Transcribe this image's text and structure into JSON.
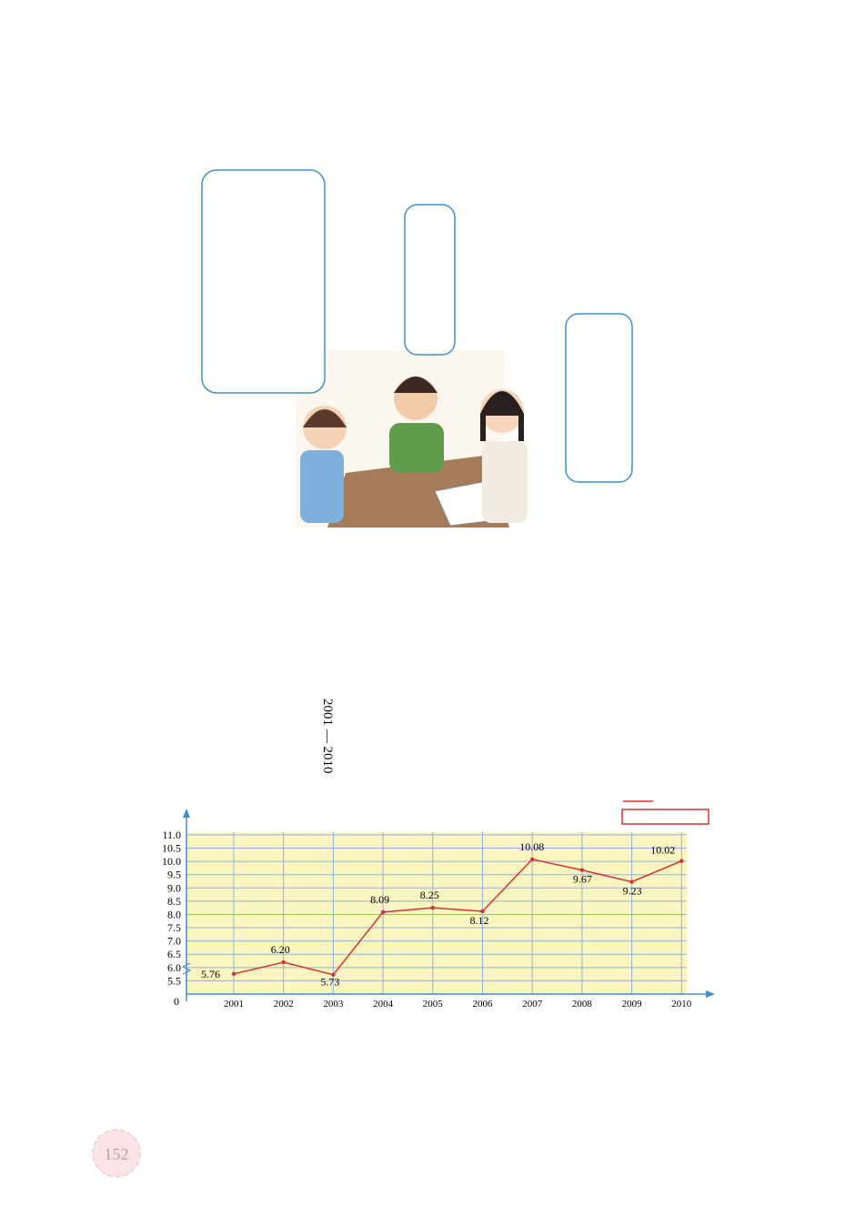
{
  "page_number": "152",
  "chart_data": {
    "type": "line",
    "subtitle": "2001 — 2010",
    "categories": [
      "2001",
      "2002",
      "2003",
      "2004",
      "2005",
      "2006",
      "2007",
      "2008",
      "2009",
      "2010"
    ],
    "series": [
      {
        "color": "#d8322e",
        "values": [
          5.76,
          6.2,
          5.73,
          8.09,
          8.25,
          8.12,
          10.08,
          9.67,
          9.23,
          10.02
        ],
        "value_labels": [
          "5.76",
          "6.20",
          "5.73",
          "8.09",
          "8.25",
          "8.12",
          "10.08",
          "9.67",
          "9.23",
          "10.02"
        ]
      }
    ],
    "ylim": [
      5.0,
      11.1
    ],
    "yticks": [
      5.5,
      {
        "value": 6.0,
        "label": "6.0"
      },
      6.5,
      {
        "value": 7.0,
        "label": "7.0"
      },
      7.5,
      {
        "value": 8.0,
        "label": "8.0"
      },
      8.5,
      {
        "value": 9.0,
        "label": "9.0"
      },
      9.5,
      {
        "value": 10.0,
        "label": "10.0"
      },
      10.5,
      {
        "value": 11.0,
        "label": "11.0"
      }
    ],
    "axis_origin": 0,
    "grid": true
  }
}
